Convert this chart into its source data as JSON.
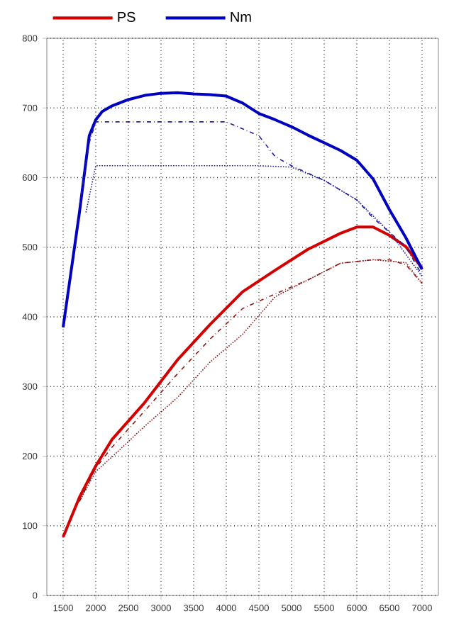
{
  "chart_data": {
    "type": "line",
    "xlim": [
      1250,
      7250
    ],
    "ylim": [
      0,
      800
    ],
    "xticks": [
      1500,
      2000,
      2500,
      3000,
      3500,
      4000,
      4500,
      5000,
      5500,
      6000,
      6500,
      7000
    ],
    "yticks": [
      0,
      100,
      200,
      300,
      400,
      500,
      600,
      700,
      800
    ],
    "grid": true,
    "legend": "top left",
    "marker": "none",
    "series": [
      {
        "name": "PS",
        "color": "#d40000",
        "line_style": "solid",
        "x": [
          1500,
          1750,
          2000,
          2250,
          2750,
          3250,
          3750,
          4250,
          4750,
          5250,
          5750,
          6000,
          6250,
          6500,
          6750,
          7000
        ],
        "values": [
          84,
          141,
          186,
          224,
          277,
          338,
          389,
          436,
          467,
          497,
          520,
          529,
          529,
          517,
          501,
          470
        ]
      },
      {
        "name": "Nm",
        "color": "#0000c0",
        "line_style": "solid",
        "x": [
          1500,
          1750,
          1900,
          2000,
          2100,
          2250,
          2500,
          2750,
          3000,
          3250,
          3500,
          3750,
          4000,
          4250,
          4500,
          4750,
          5000,
          5250,
          5500,
          5750,
          6000,
          6250,
          6500,
          6750,
          7000
        ],
        "values": [
          385,
          550,
          660,
          683,
          695,
          703,
          712,
          718,
          721,
          722,
          720,
          719,
          717,
          707,
          692,
          683,
          673,
          661,
          650,
          639,
          625,
          598,
          554,
          514,
          468
        ]
      },
      {
        "color": "#8b1a1a",
        "line_style": "dashed",
        "x": [
          1750,
          2000,
          2250,
          2750,
          3250,
          3750,
          4250,
          4750,
          5250,
          5750,
          6250,
          6500,
          6750,
          7000
        ],
        "values": [
          135,
          183,
          213,
          265,
          318,
          368,
          412,
          433,
          453,
          477,
          482,
          482,
          475,
          448
        ]
      },
      {
        "color": "#8b1a1a",
        "line_style": "dotted",
        "x": [
          1750,
          2000,
          2250,
          2750,
          3250,
          3750,
          4250,
          4750,
          5250,
          5750,
          6250,
          6750,
          7000
        ],
        "values": [
          135,
          178,
          199,
          243,
          284,
          335,
          375,
          429,
          453,
          477,
          482,
          478,
          448
        ]
      },
      {
        "color": "#2020a0",
        "line_style": "dashed",
        "x": [
          1750,
          1900,
          2000,
          2500,
          3000,
          3500,
          4000,
          4250,
          4500,
          4750,
          5000,
          5500,
          6000,
          6250,
          6750,
          7000
        ],
        "values": [
          560,
          650,
          680,
          680,
          680,
          680,
          680,
          670,
          660,
          630,
          617,
          596,
          568,
          542,
          501,
          460
        ]
      },
      {
        "color": "#2020a0",
        "line_style": "dotted",
        "x": [
          1850,
          2000,
          2500,
          3000,
          3500,
          4000,
          4500,
          5000,
          5500,
          6000,
          6500,
          7000
        ],
        "values": [
          550,
          617,
          617,
          617,
          617,
          617,
          617,
          615,
          596,
          568,
          522,
          458
        ]
      }
    ]
  }
}
